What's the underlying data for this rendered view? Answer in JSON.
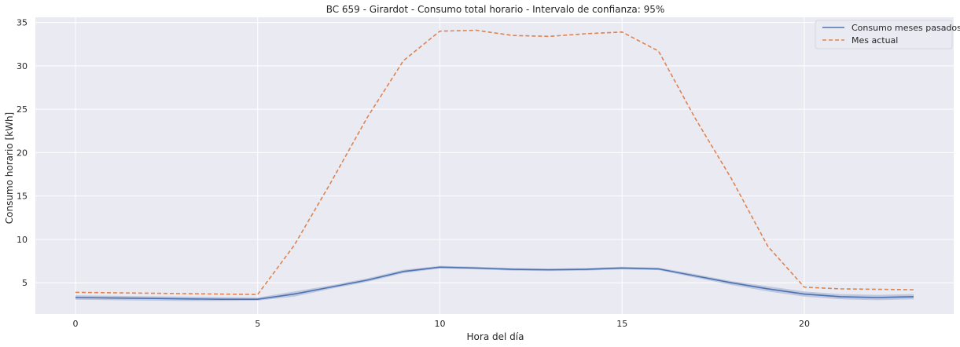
{
  "chart_data": {
    "type": "line",
    "title": "BC 659 - Girardot - Consumo total horario - Intervalo de confianza: 95%",
    "xlabel": "Hora del día",
    "ylabel": "Consumo horario [kWh]",
    "xlim": [
      -1.1,
      24.1
    ],
    "ylim": [
      1.4,
      35.6
    ],
    "xticks": [
      0,
      5,
      10,
      15,
      20
    ],
    "yticks": [
      5,
      10,
      15,
      20,
      25,
      30,
      35
    ],
    "grid": true,
    "legend_position": "top-right",
    "x": [
      0,
      1,
      2,
      3,
      4,
      5,
      6,
      7,
      8,
      9,
      10,
      11,
      12,
      13,
      14,
      15,
      16,
      17,
      18,
      19,
      20,
      21,
      22,
      23
    ],
    "series": [
      {
        "name": "Consumo meses pasados",
        "style": "solid",
        "color": "#4c72b0",
        "values": [
          3.3,
          3.25,
          3.2,
          3.15,
          3.1,
          3.1,
          3.7,
          4.5,
          5.3,
          6.3,
          6.8,
          6.7,
          6.55,
          6.5,
          6.55,
          6.7,
          6.6,
          5.8,
          5.0,
          4.3,
          3.7,
          3.4,
          3.3,
          3.4
        ],
        "ci_lower": [
          3.05,
          3.0,
          2.95,
          2.9,
          2.9,
          2.95,
          3.4,
          4.3,
          5.1,
          6.1,
          6.65,
          6.55,
          6.4,
          6.35,
          6.4,
          6.55,
          6.45,
          5.6,
          4.75,
          4.0,
          3.4,
          3.1,
          3.0,
          3.1
        ],
        "ci_upper": [
          3.55,
          3.5,
          3.45,
          3.4,
          3.35,
          3.3,
          4.0,
          4.7,
          5.5,
          6.5,
          6.95,
          6.85,
          6.7,
          6.65,
          6.7,
          6.85,
          6.75,
          6.0,
          5.2,
          4.6,
          4.0,
          3.7,
          3.6,
          3.7
        ]
      },
      {
        "name": "Mes actual",
        "style": "dashed",
        "color": "#dd8452",
        "values": [
          3.9,
          3.85,
          3.8,
          3.75,
          3.7,
          3.65,
          9.3,
          16.5,
          24.0,
          30.6,
          34.0,
          34.1,
          33.5,
          33.4,
          33.7,
          33.9,
          31.7,
          24.0,
          17.0,
          9.2,
          4.5,
          4.3,
          4.25,
          4.2
        ]
      }
    ]
  },
  "colors": {
    "background": "#eaeaf2",
    "grid": "#ffffff",
    "ci_band": "#b0bcd8"
  }
}
